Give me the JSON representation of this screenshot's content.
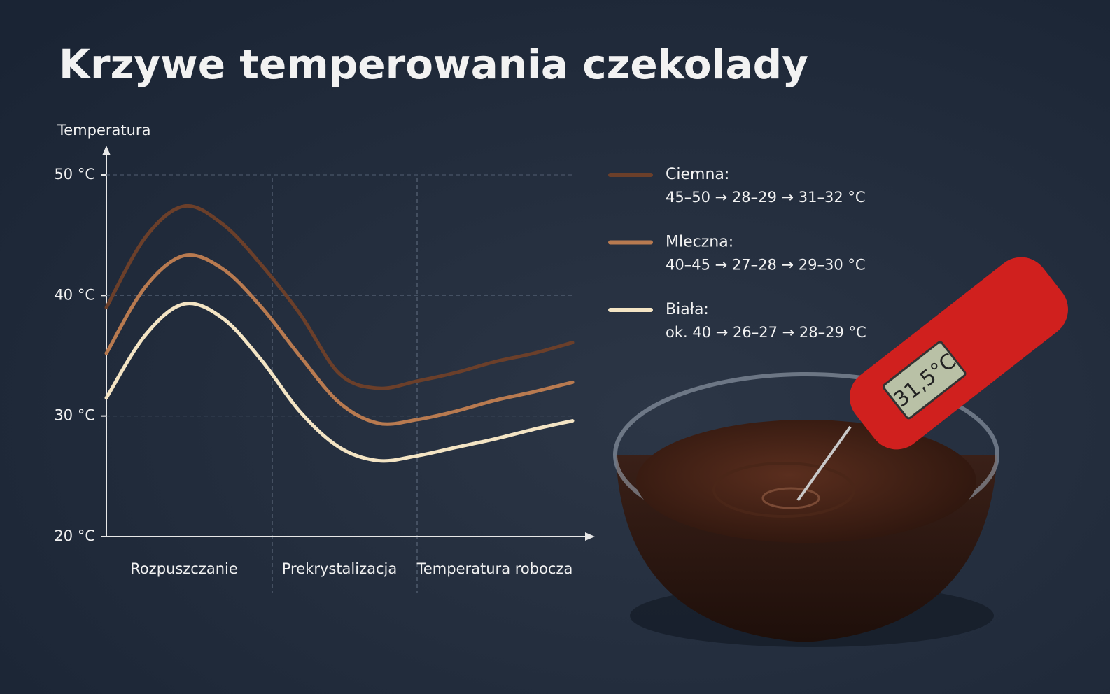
{
  "chart_data": {
    "type": "line",
    "title": "Krzywe temperowania czekolady",
    "y_label": "Temperatura",
    "categories": [
      null,
      null,
      "Rozpuszczanie",
      null,
      null,
      null,
      "Prekrystalizacja",
      null,
      null,
      null,
      "Temperatura robocza",
      null,
      null
    ],
    "ylim": [
      20,
      50
    ],
    "yticks": [
      {
        "value": 20,
        "label": "20 °C"
      },
      {
        "value": 30,
        "label": "30 °C"
      },
      {
        "value": 40,
        "label": "40 °C"
      },
      {
        "value": 50,
        "label": "50 °C"
      }
    ],
    "grid": true,
    "series": [
      {
        "name": "Ciemna:",
        "label": "45–50 → 28–29 → 31–32 °C",
        "color": "#6b3f2a",
        "values": [
          39.0,
          44.8,
          47.4,
          45.9,
          42.5,
          38.4,
          33.5,
          32.3,
          32.9,
          33.6,
          34.5,
          35.2,
          36.1
        ]
      },
      {
        "name": "Mleczna:",
        "label": "40–45 → 27–28 → 29–30 °C",
        "color": "#b87a50",
        "values": [
          35.2,
          40.7,
          43.3,
          42.2,
          39.0,
          34.9,
          31.1,
          29.4,
          29.7,
          30.4,
          31.3,
          32.0,
          32.8
        ]
      },
      {
        "name": "Biała:",
        "label": "ok. 40 → 26–27 → 28–29 °C",
        "color": "#f3e4c4",
        "values": [
          31.5,
          36.7,
          39.3,
          38.1,
          34.6,
          30.3,
          27.4,
          26.3,
          26.7,
          27.4,
          28.1,
          28.9,
          29.6
        ]
      }
    ]
  },
  "image": {
    "thermometer_display": "31,5°C"
  }
}
